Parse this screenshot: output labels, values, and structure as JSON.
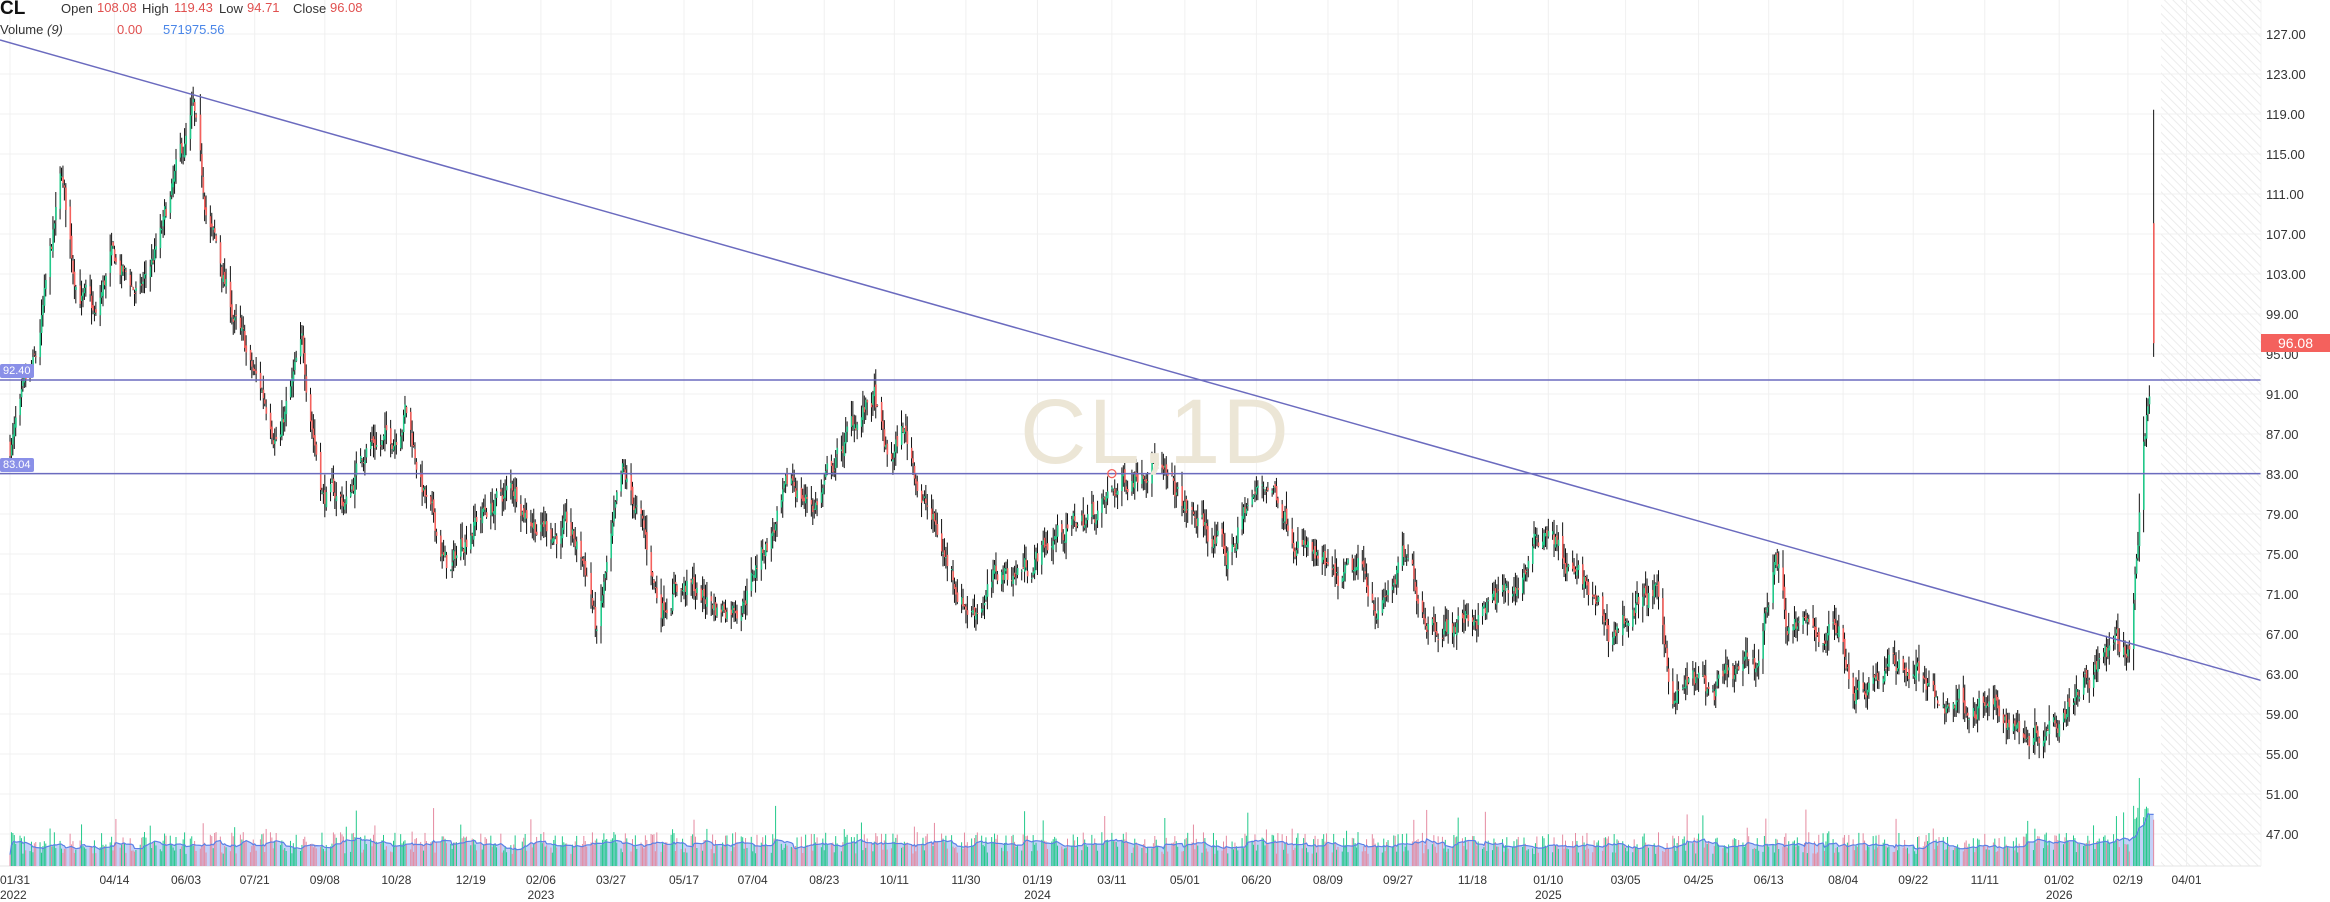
{
  "header": {
    "symbol": "CL",
    "open_label": "Open",
    "open": "108.08",
    "high_label": "High",
    "high": "119.43",
    "low_label": "Low",
    "low": "94.71",
    "close_label": "Close",
    "close": "96.08",
    "volume_label": "Volume",
    "volume_param": "(9)",
    "volume_value": "0.00",
    "volume_ma": "571975.56"
  },
  "watermark": "CL,1D",
  "level_labels": [
    "92.40",
    "83.04"
  ],
  "last_price": "96.08",
  "colors": {
    "up": "#22c98a",
    "down": "#f4615d",
    "wick": "#111111",
    "lines": "#6b6bbf",
    "volume_area": "#b9c9f7",
    "volume_line": "#5b80e6"
  },
  "chart_data": {
    "type": "candlestick",
    "symbol": "CL",
    "interval": "1D",
    "ylim": [
      45,
      129
    ],
    "y_ticks": [
      "127.00",
      "123.00",
      "119.00",
      "115.00",
      "111.00",
      "107.00",
      "103.00",
      "99.00",
      "95.00",
      "91.00",
      "87.00",
      "83.00",
      "79.00",
      "75.00",
      "71.00",
      "67.00",
      "63.00",
      "59.00",
      "55.00",
      "51.00",
      "47.00"
    ],
    "x_ticks": [
      {
        "date": "2022-01-31",
        "label": "01/31",
        "year": "2022"
      },
      {
        "date": "2022-04-14",
        "label": "04/14"
      },
      {
        "date": "2022-06-03",
        "label": "06/03"
      },
      {
        "date": "2022-07-21",
        "label": "07/21"
      },
      {
        "date": "2022-09-08",
        "label": "09/08"
      },
      {
        "date": "2022-10-28",
        "label": "10/28"
      },
      {
        "date": "2022-12-19",
        "label": "12/19"
      },
      {
        "date": "2023-02-06",
        "label": "02/06",
        "year": "2023"
      },
      {
        "date": "2023-03-27",
        "label": "03/27"
      },
      {
        "date": "2023-05-17",
        "label": "05/17"
      },
      {
        "date": "2023-07-04",
        "label": "07/04"
      },
      {
        "date": "2023-08-23",
        "label": "08/23"
      },
      {
        "date": "2023-10-11",
        "label": "10/11"
      },
      {
        "date": "2023-11-30",
        "label": "11/30"
      },
      {
        "date": "2024-01-19",
        "label": "01/19",
        "year": "2024"
      },
      {
        "date": "2024-03-11",
        "label": "03/11"
      },
      {
        "date": "2024-05-01",
        "label": "05/01"
      },
      {
        "date": "2024-06-20",
        "label": "06/20"
      },
      {
        "date": "2024-08-09",
        "label": "08/09"
      },
      {
        "date": "2024-09-27",
        "label": "09/27"
      },
      {
        "date": "2024-11-18",
        "label": "11/18"
      },
      {
        "date": "2025-01-10",
        "label": "01/10",
        "year": "2025"
      },
      {
        "date": "2025-03-05",
        "label": "03/05"
      },
      {
        "date": "2025-04-25",
        "label": "04/25"
      },
      {
        "date": "2025-06-13",
        "label": "06/13"
      },
      {
        "date": "2025-08-04",
        "label": "08/04"
      },
      {
        "date": "2025-09-22",
        "label": "09/22"
      },
      {
        "date": "2025-11-11",
        "label": "11/11"
      },
      {
        "date": "2026-01-02",
        "label": "01/02",
        "year": "2026"
      },
      {
        "date": "2026-02-19",
        "label": "02/19"
      },
      {
        "date": "2026-04-01",
        "label": "04/01"
      }
    ],
    "close_path": [
      [
        "2022-01-31",
        85.9
      ],
      [
        "2022-02-18",
        93
      ],
      [
        "2022-03-08",
        112
      ],
      [
        "2022-03-16",
        103.6
      ],
      [
        "2022-04-01",
        97.7
      ],
      [
        "2022-04-11",
        104
      ],
      [
        "2022-05-02",
        100.7
      ],
      [
        "2022-05-17",
        106.6
      ],
      [
        "2022-06-08",
        118.4
      ],
      [
        "2022-06-14",
        111
      ],
      [
        "2022-07-02",
        100.7
      ],
      [
        "2022-07-18",
        93
      ],
      [
        "2022-08-07",
        87.4
      ],
      [
        "2022-08-23",
        94.8
      ],
      [
        "2022-09-07",
        81.4
      ],
      [
        "2022-09-23",
        80
      ],
      [
        "2022-10-08",
        87
      ],
      [
        "2022-10-24",
        86
      ],
      [
        "2022-11-03",
        90.3
      ],
      [
        "2022-11-18",
        80
      ],
      [
        "2022-12-04",
        72.6
      ],
      [
        "2022-12-19",
        78.5
      ],
      [
        "2023-01-04",
        80
      ],
      [
        "2023-01-19",
        81.4
      ],
      [
        "2023-02-04",
        78.5
      ],
      [
        "2023-02-24",
        77
      ],
      [
        "2023-03-12",
        72.6
      ],
      [
        "2023-03-17",
        66.6
      ],
      [
        "2023-03-25",
        74
      ],
      [
        "2023-04-04",
        81.4
      ],
      [
        "2023-04-15",
        78.5
      ],
      [
        "2023-04-30",
        69.6
      ],
      [
        "2023-05-11",
        72.6
      ],
      [
        "2023-05-26",
        71
      ],
      [
        "2023-06-10",
        69.6
      ],
      [
        "2023-06-26",
        71
      ],
      [
        "2023-07-11",
        75.5
      ],
      [
        "2023-08-01",
        81.4
      ],
      [
        "2023-08-16",
        80
      ],
      [
        "2023-09-01",
        84.4
      ],
      [
        "2023-09-16",
        88.8
      ],
      [
        "2023-09-27",
        90.3
      ],
      [
        "2023-10-07",
        83
      ],
      [
        "2023-10-17",
        87.4
      ],
      [
        "2023-11-02",
        80
      ],
      [
        "2023-11-17",
        74
      ],
      [
        "2023-12-03",
        69.6
      ],
      [
        "2023-12-23",
        72.6
      ],
      [
        "2024-01-12",
        74
      ],
      [
        "2024-02-01",
        77
      ],
      [
        "2024-02-22",
        78.5
      ],
      [
        "2024-03-08",
        80
      ],
      [
        "2024-03-24",
        83
      ],
      [
        "2024-04-08",
        85.9
      ],
      [
        "2024-04-19",
        81.4
      ],
      [
        "2024-05-04",
        78.5
      ],
      [
        "2024-05-19",
        77
      ],
      [
        "2024-05-30",
        74
      ],
      [
        "2024-06-14",
        80
      ],
      [
        "2024-06-30",
        82.2
      ],
      [
        "2024-07-15",
        78.5
      ],
      [
        "2024-07-31",
        74
      ],
      [
        "2024-08-15",
        71
      ],
      [
        "2024-08-31",
        72.6
      ],
      [
        "2024-09-15",
        69.6
      ],
      [
        "2024-09-30",
        74
      ],
      [
        "2024-10-16",
        69.6
      ],
      [
        "2024-11-05",
        68
      ],
      [
        "2024-11-26",
        69.6
      ],
      [
        "2024-12-17",
        71
      ],
      [
        "2025-01-10",
        78.5
      ],
      [
        "2025-01-22",
        74
      ],
      [
        "2025-02-06",
        71
      ],
      [
        "2025-02-22",
        66.6
      ],
      [
        "2025-03-09",
        69.6
      ],
      [
        "2025-03-25",
        71
      ],
      [
        "2025-04-08",
        60.7
      ],
      [
        "2025-04-20",
        62.2
      ],
      [
        "2025-05-05",
        60.7
      ],
      [
        "2025-05-20",
        62.2
      ],
      [
        "2025-06-05",
        63.7
      ],
      [
        "2025-06-18",
        75.5
      ],
      [
        "2025-06-26",
        68
      ],
      [
        "2025-07-10",
        66.6
      ],
      [
        "2025-07-30",
        68
      ],
      [
        "2025-08-12",
        62.2
      ],
      [
        "2025-08-30",
        63.7
      ],
      [
        "2025-09-25",
        63.7
      ],
      [
        "2025-10-10",
        59.2
      ],
      [
        "2025-10-25",
        60.7
      ],
      [
        "2025-11-15",
        59.2
      ],
      [
        "2025-12-05",
        57.8
      ],
      [
        "2025-12-20",
        57.8
      ],
      [
        "2026-01-05",
        60.7
      ],
      [
        "2026-01-20",
        63.7
      ],
      [
        "2026-02-10",
        65.2
      ],
      [
        "2026-02-20",
        65
      ],
      [
        "2026-02-25",
        74
      ],
      [
        "2026-03-02",
        85.9
      ],
      [
        "2026-03-05",
        91
      ]
    ],
    "last_bar": {
      "date": "2026-03-09",
      "open": 108.08,
      "high": 119.43,
      "low": 94.71,
      "close": 96.08
    },
    "horizontal_lines": [
      92.4,
      83.04
    ],
    "trendline": [
      [
        "2022-01-24",
        126.4
      ],
      [
        "2026-03-09",
        65.4
      ]
    ],
    "marker": {
      "date": "2024-03-11",
      "price": 83.04
    },
    "grid": true
  }
}
